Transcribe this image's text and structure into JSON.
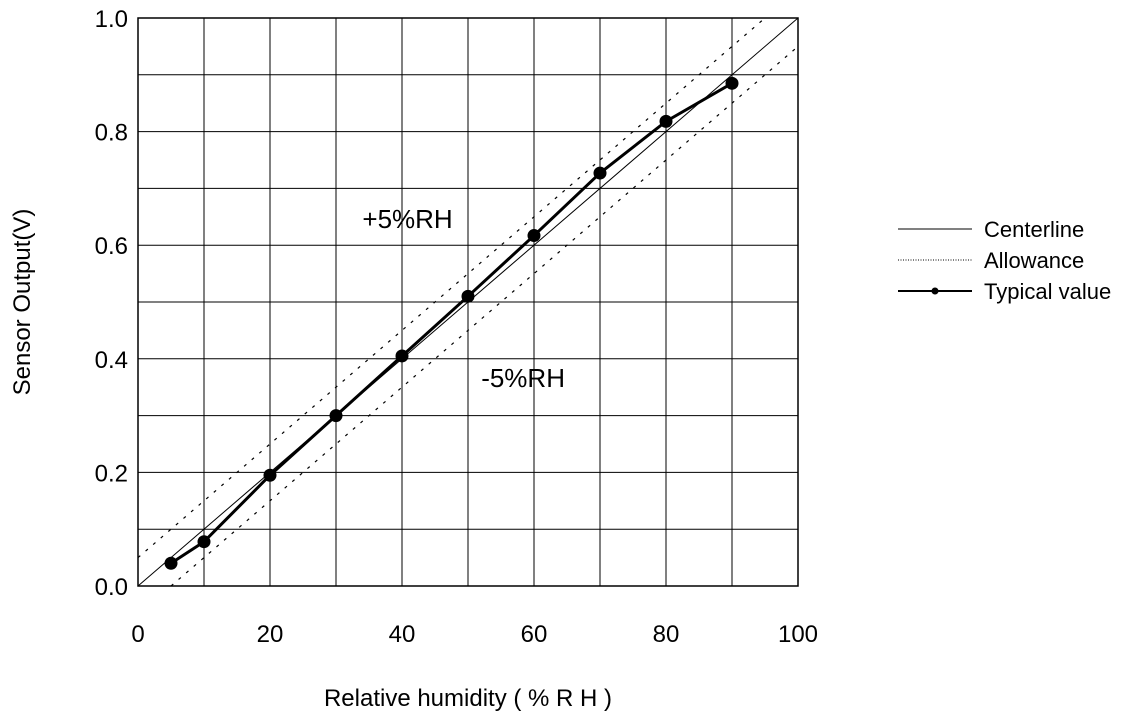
{
  "chart_data": {
    "type": "line",
    "title": "",
    "xlabel": "Relative humidity ( % R H )",
    "ylabel": "Sensor Output(V)",
    "xlim": [
      0,
      100
    ],
    "ylim": [
      0.0,
      1.0
    ],
    "x_ticks": [
      0,
      20,
      40,
      60,
      80,
      100
    ],
    "x_tick_labels": [
      "0",
      "20",
      "40",
      "60",
      "80",
      "100"
    ],
    "y_ticks": [
      0.0,
      0.2,
      0.4,
      0.6,
      0.8,
      1.0
    ],
    "y_tick_labels": [
      "0.0",
      "0.2",
      "0.4",
      "0.6",
      "0.8",
      "1.0"
    ],
    "x_grid_step": 10,
    "y_grid_step": 0.1,
    "grid": true,
    "legend_position": "right",
    "series": [
      {
        "name": "Centerline",
        "style": "thin-solid",
        "x": [
          0,
          100
        ],
        "y": [
          0.0,
          1.0
        ]
      },
      {
        "name": "Allowance",
        "style": "dotted",
        "segments": [
          {
            "label": "+5%RH",
            "x": [
              0,
              95
            ],
            "y": [
              0.05,
              1.0
            ]
          },
          {
            "label": "-5%RH",
            "x": [
              5,
              100
            ],
            "y": [
              0.0,
              0.95
            ]
          }
        ]
      },
      {
        "name": "Typical value",
        "style": "thick-solid-markers",
        "x": [
          5,
          10,
          20,
          30,
          40,
          50,
          60,
          70,
          80,
          90
        ],
        "y": [
          0.04,
          0.078,
          0.195,
          0.3,
          0.405,
          0.51,
          0.617,
          0.727,
          0.818,
          0.885
        ]
      }
    ],
    "annotations": [
      {
        "text": "+5%RH",
        "x": 34,
        "y": 0.63
      },
      {
        "text": "-5%RH",
        "x": 52,
        "y": 0.35
      }
    ],
    "colors": {
      "line": "#000000",
      "grid": "#000000",
      "background": "#ffffff"
    }
  }
}
